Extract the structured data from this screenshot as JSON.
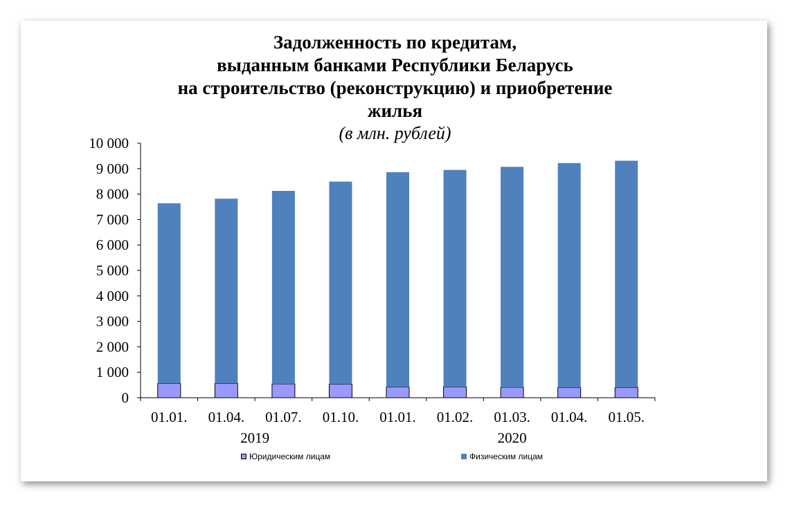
{
  "chart_data": {
    "type": "bar",
    "stacked": true,
    "title_lines": [
      "Задолженность по кредитам,",
      "выданным банками Республики Беларусь",
      "на строительство (реконструкцию) и приобретение",
      "жилья"
    ],
    "subtitle": "(в млн. рублей)",
    "categories": [
      "01.01.",
      "01.04.",
      "01.07.",
      "01.10.",
      "01.01.",
      "01.02.",
      "01.03.",
      "01.04.",
      "01.05."
    ],
    "year_groups": [
      {
        "label": "2019",
        "category_indices": [
          0,
          1,
          2,
          3
        ]
      },
      {
        "label": "2020",
        "category_indices": [
          4,
          5,
          6,
          7,
          8
        ]
      }
    ],
    "series": [
      {
        "name": "Юридическим лицам",
        "color": "#9999ff",
        "values": [
          560,
          560,
          545,
          530,
          420,
          420,
          410,
          400,
          400
        ]
      },
      {
        "name": "Физическим лицам",
        "color": "#4f81bd",
        "values": [
          7080,
          7260,
          7580,
          7960,
          8440,
          8530,
          8660,
          8820,
          8910
        ]
      }
    ],
    "ylim": [
      0,
      10000
    ],
    "yticks": [
      0,
      1000,
      2000,
      3000,
      4000,
      5000,
      6000,
      7000,
      8000,
      9000,
      10000
    ],
    "ytick_labels": [
      "0",
      "1 000",
      "2 000",
      "3 000",
      "4 000",
      "5 000",
      "6 000",
      "7 000",
      "8 000",
      "9 000",
      "10 000"
    ],
    "xlabel": "",
    "ylabel": "",
    "grid": false,
    "legend_position": "bottom"
  }
}
